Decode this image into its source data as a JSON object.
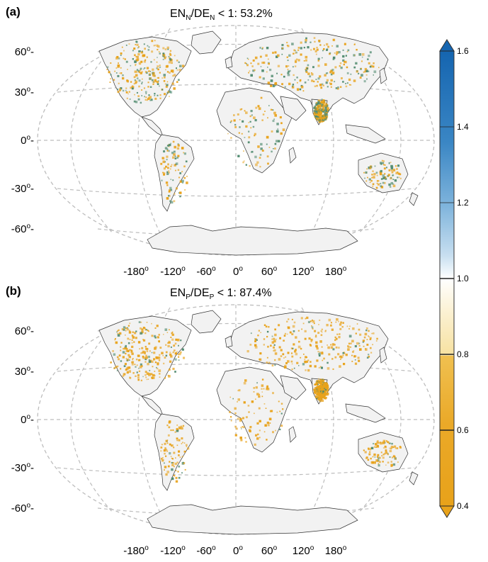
{
  "panels": [
    {
      "id": "a",
      "label": "(a)",
      "title": {
        "pre": "EN",
        "sub1": "N",
        "mid": "/DE",
        "sub2": "N",
        "post": " < 1: 53.2%"
      },
      "lat_ticks": [
        "60",
        "30",
        "0",
        "-30",
        "-60"
      ],
      "lon_ticks": [
        "-180",
        "-120",
        "-60",
        "0",
        "60",
        "120",
        "180"
      ],
      "degree_symbol": "o",
      "share_below_one": 53.2
    },
    {
      "id": "b",
      "label": "(b)",
      "title": {
        "pre": "EN",
        "sub1": "P",
        "mid": "/DE",
        "sub2": "P",
        "post": " < 1: 87.4%"
      },
      "lat_ticks": [
        "60",
        "30",
        "0",
        "-30",
        "-60"
      ],
      "lon_ticks": [
        "-180",
        "-120",
        "-60",
        "0",
        "60",
        "120",
        "180"
      ],
      "degree_symbol": "o",
      "share_below_one": 87.4
    }
  ],
  "colorbar": {
    "ticks": [
      "1.6",
      "1.4",
      "1.2",
      "1.0",
      "0.8",
      "0.6",
      "0.4"
    ],
    "range": [
      0.4,
      1.6
    ],
    "extend": "both",
    "colors": {
      "top": "#1565b0",
      "upper_mid": "#5a9fd4",
      "light_blue": "#c8dff0",
      "white": "#ffffff",
      "cream": "#f7e7b0",
      "light_orange": "#f0c050",
      "orange": "#e8a21a"
    }
  },
  "map_colors": {
    "land": "#f2f2f2",
    "coast": "#333333",
    "grid": "#bdbdbd",
    "orange": "#e8a21a",
    "green": "#4f8a6e"
  }
}
